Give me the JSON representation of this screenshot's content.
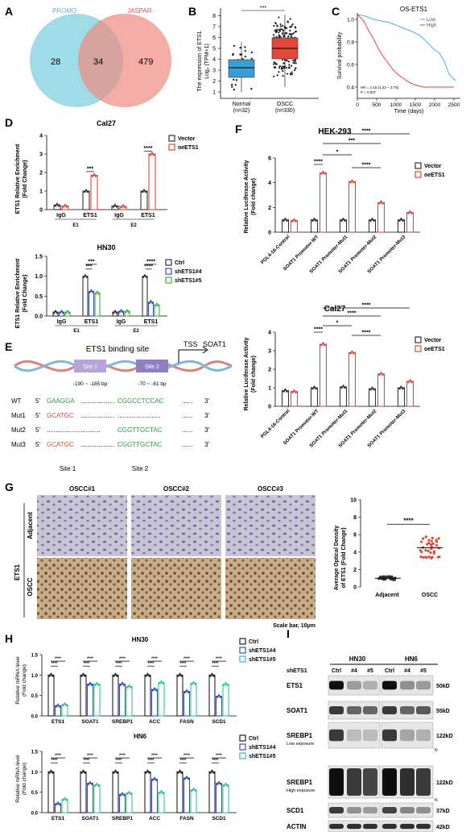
{
  "panel_letters": {
    "A": "A",
    "B": "B",
    "C": "C",
    "D": "D",
    "E": "E",
    "F": "F",
    "G": "G",
    "H": "H",
    "I": "I"
  },
  "panelA": {
    "left_label": "PROMO",
    "right_label": "JASPAR",
    "left_only": "28",
    "overlap": "34",
    "right_only": "479",
    "colors": {
      "left": "#7fd0e0",
      "right": "#f08a80"
    }
  },
  "panelB": {
    "ylabel_line1": "The expression of ETS1",
    "ylabel_line2": "Log₂ (TPM+1)",
    "sig": "***",
    "yticks": [
      "1",
      "2",
      "3",
      "4",
      "5",
      "6",
      "7",
      "8"
    ],
    "groups": [
      {
        "name": "Normal",
        "n": "(n=32)",
        "color": "#3a9fd0"
      },
      {
        "name": "OSCC",
        "n": "(n=330)",
        "color": "#e2473a"
      }
    ]
  },
  "panelC": {
    "title": "OS-ETS1",
    "legend": [
      "Low",
      "High"
    ],
    "ylabel": "Survival probability",
    "xlabel": "Time (days)",
    "yticks": [
      "0.4",
      "0.6",
      "0.8",
      "1.0"
    ],
    "xticks": [
      "0",
      "500",
      "1000",
      "1500",
      "2000",
      "2500"
    ],
    "hr": "HR = 2.15 (1.23 − 3.75)",
    "p": "P = 0.007",
    "colors": {
      "low": "#e2473a",
      "high": "#4ab3d6"
    }
  },
  "panelD1": {
    "title": "Cal27",
    "ylabel_line1": "ETS1 Relative Enrichment",
    "ylabel_line2": "(Fold Change)",
    "yticks": [
      "0",
      "1",
      "2",
      "3",
      "4"
    ],
    "legend": [
      "Vector",
      "oeETS1"
    ],
    "xcats": [
      "IgG",
      "ETS1",
      "IgG",
      "ETS1"
    ],
    "groups": [
      "E1",
      "E2"
    ],
    "sig": [
      "***",
      "****"
    ]
  },
  "panelD2": {
    "title": "HN30",
    "ylabel_line1": "ETS1 Relative Enrichment",
    "ylabel_line2": "(Fold Change)",
    "yticks": [
      "0.0",
      "0.5",
      "1.0",
      "1.5"
    ],
    "legend": [
      "Ctrl",
      "shETS1#4",
      "shETS1#5"
    ],
    "xcats": [
      "IgG",
      "ETS1",
      "IgG",
      "ETS1"
    ],
    "groups": [
      "E1",
      "E2"
    ],
    "sig": [
      "***",
      "***",
      "****",
      "****"
    ]
  },
  "panelE": {
    "title": "ETS1 binding site",
    "tss": "TSS",
    "gene": "SOAT1",
    "site1": "Site 1",
    "site2": "Site 2",
    "range1": "-190 ~ -185 bp",
    "range2": "-70 ~ -61 bp",
    "rows": [
      {
        "name": "WT",
        "p5": "5'",
        "s1": "GAAGGA",
        "dots": "...................",
        "s2": "CGGCCTCCAC",
        "p3": "3'"
      },
      {
        "name": "Mut1",
        "p5": "5'",
        "s1": "GCATGC",
        "dots": "...................",
        "s2": "",
        "p3": "3'"
      },
      {
        "name": "Mut2",
        "p5": "5'",
        "s1": "",
        "dots": "",
        "s2": "CGGTTGCTAC",
        "p3": "3'"
      },
      {
        "name": "Mut3",
        "p5": "5'",
        "s1": "GCATGC",
        "dots": "...................",
        "s2": "CGGTTGCTAC",
        "p3": "3'"
      }
    ],
    "foot1": "Site 1",
    "foot2": "Site 2"
  },
  "panelF1": {
    "title": "HEK-293",
    "ylabel_line1": "Relative Luciferase Activity",
    "ylabel_line2": "(Fold change)",
    "yticks": [
      "0",
      "2",
      "4",
      "6"
    ],
    "legend": [
      "Vector",
      "oeETS1"
    ],
    "xcats": [
      "PGL4-16-Control",
      "SOAT1 Promoter-WT",
      "SOAT1 Promoter-Mut1",
      "SOAT1 Promoter-Mut2",
      "SOAT1 Promoter-Mut3"
    ],
    "sig": [
      "****",
      "*",
      "***",
      "****",
      "****"
    ]
  },
  "panelF2": {
    "title": "Cal27",
    "ylabel_line1": "Relative Luciferase Activity",
    "ylabel_line2": "(Fold change)",
    "yticks": [
      "0",
      "1",
      "2",
      "3",
      "4"
    ],
    "legend": [
      "Vector",
      "oeETS1"
    ],
    "xcats": [
      "PGL4-16-Control",
      "SOAT1 Promoter-WT",
      "SOAT1 Promoter-Mut1",
      "SOAT1 Promoter-Mut2",
      "SOAT1 Promoter-Mut3"
    ],
    "sig": [
      "****",
      "*",
      "****",
      "****",
      "****"
    ]
  },
  "panelG": {
    "cols": [
      "OSCC#1",
      "OSCC#2",
      "OSCC#3"
    ],
    "rows": [
      "Adjacent",
      "OSCC"
    ],
    "side": "ETS1",
    "scale": "Scale bar, 10μm",
    "ylabel_line1": "Average Optical Density",
    "ylabel_line2": "of ETS1 (Fold Change)",
    "yticks": [
      "0",
      "2",
      "4",
      "6",
      "8",
      "10"
    ],
    "xcats": [
      "Adjacent",
      "OSCC"
    ],
    "sig": "****"
  },
  "panelH1": {
    "title": "HN30",
    "ylabel_line1": "Relative mRNA level",
    "ylabel_line2": "(Fold change)",
    "yticks": [
      "0.0",
      "0.5",
      "1.0",
      "1.5"
    ],
    "legend": [
      "Ctrl",
      "shETS1#4",
      "shETS1#5"
    ],
    "xcats": [
      "ETS1",
      "SOAT1",
      "SREBP1",
      "ACC",
      "FASN",
      "SCD1"
    ]
  },
  "panelH2": {
    "title": "HN6",
    "ylabel_line1": "Relative mRNA level",
    "ylabel_line2": "(Fold change)",
    "yticks": [
      "0.0",
      "0.5",
      "1.0",
      "1.5"
    ],
    "legend": [
      "Ctrl",
      "shETS1#4",
      "shETS1#5"
    ],
    "xcats": [
      "ETS1",
      "SOAT1",
      "SREBP1",
      "ACC",
      "FASN",
      "SCD1"
    ]
  },
  "panelI": {
    "cell_lines": [
      "HN30",
      "HN6"
    ],
    "row_label": "shETS1",
    "lanes": [
      "Ctrl",
      "#4",
      "#5",
      "Ctrl",
      "#4",
      "#5"
    ],
    "proteins": [
      {
        "name": "ETS1",
        "sub": "",
        "kd": "50kD"
      },
      {
        "name": "SOAT1",
        "sub": "",
        "kd": "55kD"
      },
      {
        "name": "SREBP1",
        "sub": "Low exposure",
        "kd": "122kD",
        "mark": "N"
      },
      {
        "name": "SREBP1",
        "sub": "High exposure",
        "kd": "122kD",
        "mark": "N"
      },
      {
        "name": "SCD1",
        "sub": "",
        "kd": "37kD"
      },
      {
        "name": "ACTIN",
        "sub": "",
        "kd": "42kD"
      }
    ]
  },
  "chart_data": [
    {
      "type": "bar",
      "panel": "D-Cal27",
      "categories": [
        "IgG-E1",
        "ETS1-E1",
        "IgG-E2",
        "ETS1-E2"
      ],
      "series": [
        {
          "name": "Vector",
          "values": [
            0.25,
            1.0,
            0.2,
            1.0
          ]
        },
        {
          "name": "oeETS1",
          "values": [
            0.2,
            1.85,
            0.18,
            3.0
          ]
        }
      ],
      "ylim": [
        0,
        4
      ]
    },
    {
      "type": "bar",
      "panel": "D-HN30",
      "categories": [
        "IgG-E1",
        "ETS1-E1",
        "IgG-E2",
        "ETS1-E2"
      ],
      "series": [
        {
          "name": "Ctrl",
          "values": [
            0.1,
            1.0,
            0.1,
            1.0
          ]
        },
        {
          "name": "shETS1#4",
          "values": [
            0.1,
            0.62,
            0.12,
            0.35
          ]
        },
        {
          "name": "shETS1#5",
          "values": [
            0.1,
            0.58,
            0.12,
            0.28
          ]
        }
      ],
      "ylim": [
        0,
        1.5
      ]
    },
    {
      "type": "bar",
      "panel": "F-HEK-293",
      "categories": [
        "PGL4-16-Control",
        "SOAT1 Promoter-WT",
        "SOAT1 Promoter-Mut1",
        "SOAT1 Promoter-Mut2",
        "SOAT1 Promoter-Mut3"
      ],
      "series": [
        {
          "name": "Vector",
          "values": [
            1.0,
            1.0,
            1.0,
            1.0,
            1.0
          ]
        },
        {
          "name": "oeETS1",
          "values": [
            0.95,
            4.8,
            4.1,
            2.4,
            1.6
          ]
        }
      ],
      "ylim": [
        0,
        6
      ]
    },
    {
      "type": "bar",
      "panel": "F-Cal27",
      "categories": [
        "PGL4-16-Control",
        "SOAT1 Promoter-WT",
        "SOAT1 Promoter-Mut1",
        "SOAT1 Promoter-Mut2",
        "SOAT1 Promoter-Mut3"
      ],
      "series": [
        {
          "name": "Vector",
          "values": [
            0.85,
            1.0,
            1.05,
            0.95,
            1.0
          ]
        },
        {
          "name": "oeETS1",
          "values": [
            0.8,
            3.35,
            2.9,
            1.75,
            1.35
          ]
        }
      ],
      "ylim": [
        0,
        4
      ]
    },
    {
      "type": "bar",
      "panel": "H-HN30",
      "categories": [
        "ETS1",
        "SOAT1",
        "SREBP1",
        "ACC",
        "FASN",
        "SCD1"
      ],
      "series": [
        {
          "name": "Ctrl",
          "values": [
            1,
            1,
            1,
            1,
            1,
            1
          ]
        },
        {
          "name": "shETS1#4",
          "values": [
            0.25,
            0.78,
            0.78,
            0.65,
            0.6,
            0.48
          ]
        },
        {
          "name": "shETS1#5",
          "values": [
            0.28,
            0.78,
            0.72,
            0.82,
            0.8,
            0.78
          ]
        }
      ],
      "ylim": [
        0,
        1.5
      ]
    },
    {
      "type": "bar",
      "panel": "H-HN6",
      "categories": [
        "ETS1",
        "SOAT1",
        "SREBP1",
        "ACC",
        "FASN",
        "SCD1"
      ],
      "series": [
        {
          "name": "Ctrl",
          "values": [
            1,
            1,
            1,
            1,
            1,
            1
          ]
        },
        {
          "name": "shETS1#4",
          "values": [
            0.22,
            0.72,
            0.45,
            0.82,
            0.85,
            0.72
          ]
        },
        {
          "name": "shETS1#5",
          "values": [
            0.33,
            0.68,
            0.48,
            0.5,
            0.56,
            0.68
          ]
        }
      ],
      "ylim": [
        0,
        1.5
      ]
    }
  ]
}
